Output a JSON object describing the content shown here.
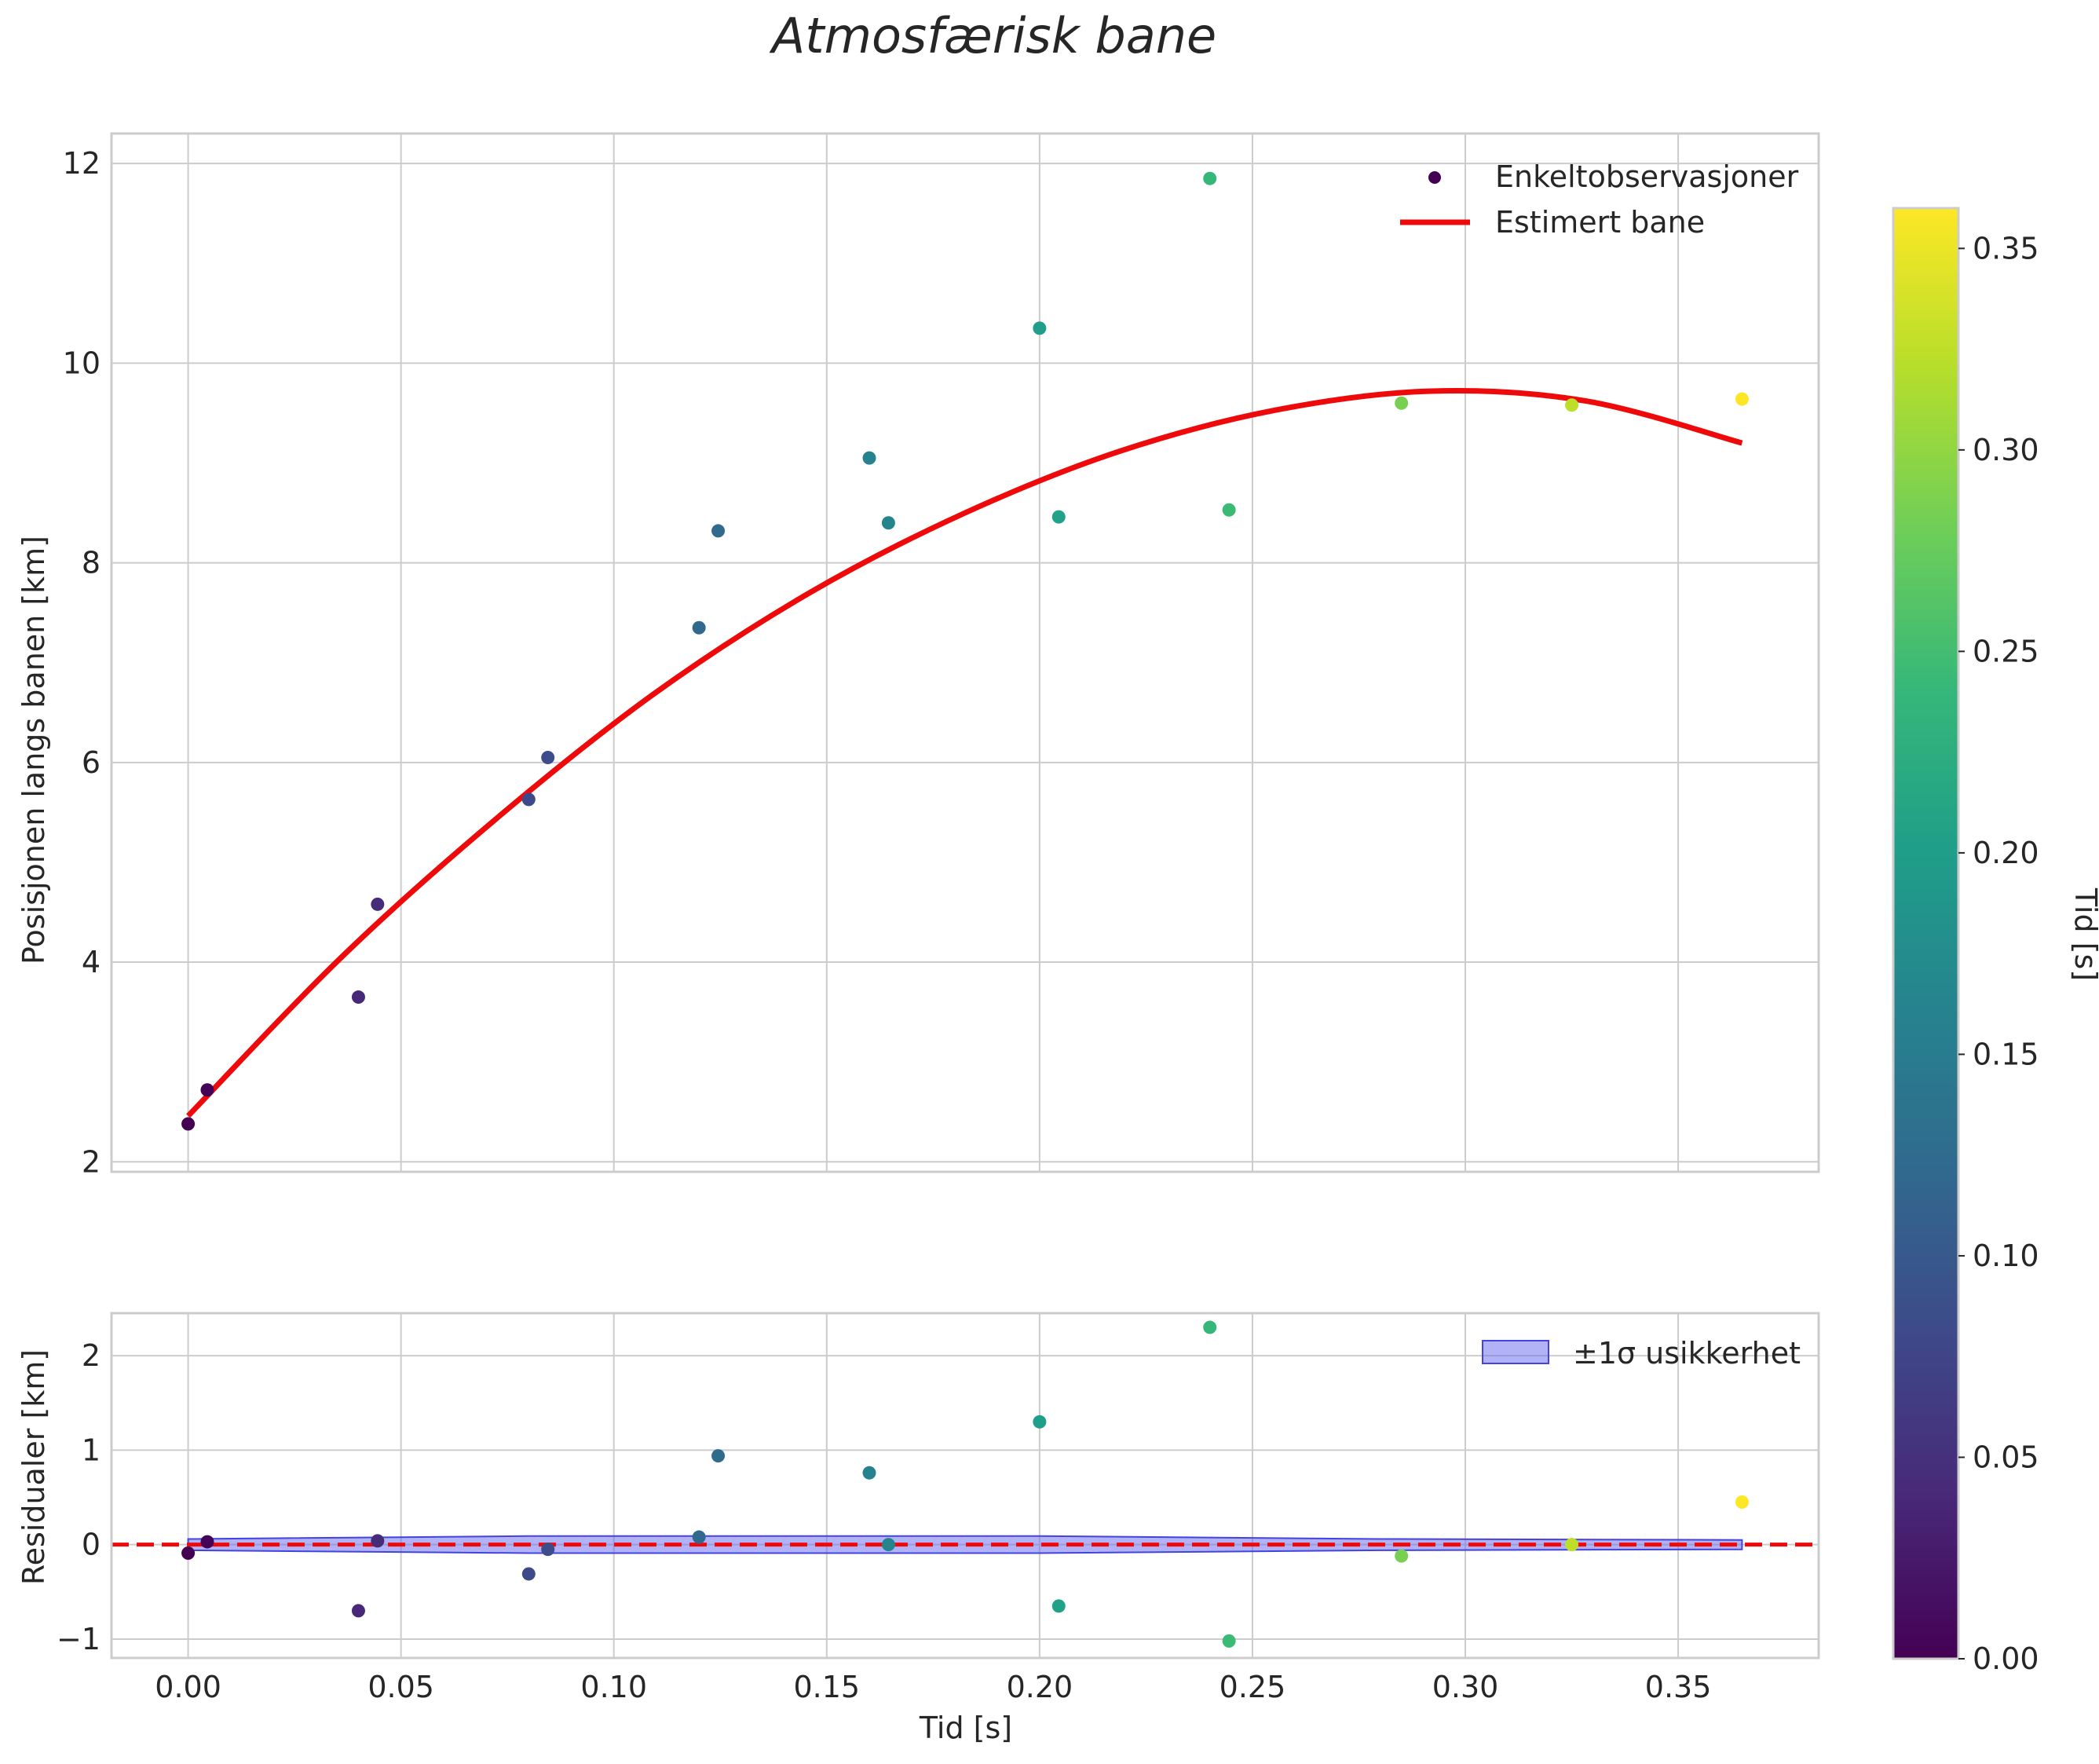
{
  "chart_data": [
    {
      "type": "scatter",
      "title": "Atmosfærisk bane",
      "xlabel": "",
      "ylabel": "Posisjonen langs banen [km]",
      "xlim": [
        -0.018,
        0.383
      ],
      "ylim": [
        1.9,
        12.3
      ],
      "xticks": [
        0.0,
        0.05,
        0.1,
        0.15,
        0.2,
        0.25,
        0.3,
        0.35
      ],
      "yticks": [
        2,
        4,
        6,
        8,
        10,
        12
      ],
      "yticklabels": [
        "2",
        "4",
        "6",
        "8",
        "10",
        "12"
      ],
      "grid": true,
      "legend": {
        "position": "top-right",
        "entries": [
          {
            "label": "Enkeltobservasjoner",
            "kind": "marker",
            "color": "#440154"
          },
          {
            "label": "Estimert bane",
            "kind": "line",
            "color": "#ee0a0a"
          }
        ]
      },
      "series": [
        {
          "name": "Enkeltobservasjoner",
          "kind": "scatter",
          "x": [
            0.0,
            0.0045,
            0.04,
            0.0445,
            0.08,
            0.0845,
            0.12,
            0.1245,
            0.16,
            0.1645,
            0.2,
            0.2045,
            0.24,
            0.2445,
            0.285,
            0.325,
            0.365
          ],
          "y": [
            2.38,
            2.72,
            3.65,
            4.58,
            5.63,
            6.05,
            7.35,
            8.32,
            9.05,
            8.4,
            10.35,
            8.46,
            11.85,
            8.53,
            9.6,
            9.58,
            9.64
          ]
        },
        {
          "name": "Estimert bane",
          "kind": "line",
          "x": [
            0.0,
            0.0365,
            0.073,
            0.1095,
            0.146,
            0.1825,
            0.219,
            0.2555,
            0.292,
            0.3285,
            0.365
          ],
          "y": [
            2.46,
            4.07,
            5.46,
            6.69,
            7.7,
            8.5,
            9.12,
            9.53,
            9.72,
            9.62,
            9.2
          ]
        }
      ]
    },
    {
      "type": "scatter",
      "title": "",
      "xlabel": "Tid [s]",
      "ylabel": "Residualer [km]",
      "xlim": [
        -0.018,
        0.383
      ],
      "ylim": [
        -1.2,
        2.45
      ],
      "xticks": [
        0.0,
        0.05,
        0.1,
        0.15,
        0.2,
        0.25,
        0.3,
        0.35
      ],
      "xticklabels": [
        "0.00",
        "0.05",
        "0.10",
        "0.15",
        "0.20",
        "0.25",
        "0.30",
        "0.35"
      ],
      "yticks": [
        -1,
        0,
        1,
        2
      ],
      "yticklabels": [
        "−1",
        "0",
        "1",
        "2"
      ],
      "grid": true,
      "legend": {
        "position": "top-right",
        "entries": [
          {
            "label": "±1σ usikkerhet",
            "kind": "band",
            "color": "#6666ee"
          }
        ]
      },
      "series": [
        {
          "name": "Residualer",
          "kind": "scatter",
          "x": [
            0.0,
            0.0045,
            0.04,
            0.0445,
            0.08,
            0.0845,
            0.12,
            0.1245,
            0.16,
            0.1645,
            0.2,
            0.2045,
            0.24,
            0.2445,
            0.285,
            0.325,
            0.365
          ],
          "y": [
            -0.09,
            0.03,
            -0.7,
            0.04,
            -0.31,
            -0.05,
            0.08,
            0.94,
            0.76,
            0.0,
            1.3,
            -0.65,
            2.3,
            -1.02,
            -0.12,
            0.0,
            0.45
          ]
        },
        {
          "name": "±1σ usikkerhet",
          "kind": "band",
          "x": [
            0.0,
            0.08,
            0.2,
            0.28,
            0.365
          ],
          "lower": [
            -0.06,
            -0.09,
            -0.09,
            -0.06,
            -0.05
          ],
          "upper": [
            0.06,
            0.09,
            0.09,
            0.06,
            0.05
          ]
        },
        {
          "name": "null",
          "kind": "hline",
          "y": 0,
          "color": "#ee0a0a"
        }
      ]
    }
  ],
  "colorbar": {
    "label": "Tid [s]",
    "colormap": "viridis",
    "range": [
      0.0,
      0.36
    ],
    "ticks": [
      0.0,
      0.05,
      0.1,
      0.15,
      0.2,
      0.25,
      0.3,
      0.35
    ],
    "ticklabels": [
      "0.00",
      "0.05",
      "0.10",
      "0.15",
      "0.20",
      "0.25",
      "0.30",
      "0.35"
    ]
  }
}
